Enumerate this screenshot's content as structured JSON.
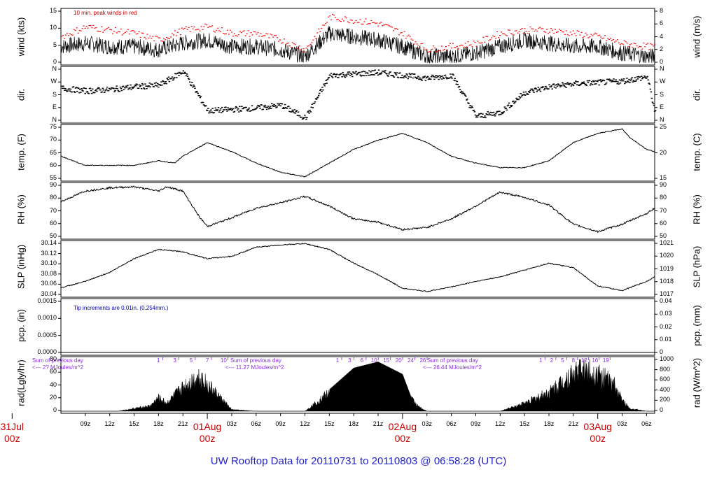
{
  "title": "UW Rooftop Data for 20110731  to  20110803 @ 06:58:28  (UTC)",
  "colors": {
    "trace": "#000000",
    "peak": "#ff0000",
    "day_label": "#cc0000",
    "title": "#2222cc",
    "note_blue": "#0000aa",
    "note_purple": "#8a2be2"
  },
  "x_axis": {
    "start_hour": 6,
    "end_hour": 79,
    "hour_ticks": [
      {
        "h": 9,
        "label": "09z"
      },
      {
        "h": 12,
        "label": "12z"
      },
      {
        "h": 15,
        "label": "15z"
      },
      {
        "h": 18,
        "label": "18z"
      },
      {
        "h": 21,
        "label": "21z"
      },
      {
        "h": 27,
        "label": "03z"
      },
      {
        "h": 30,
        "label": "06z"
      },
      {
        "h": 33,
        "label": "09z"
      },
      {
        "h": 36,
        "label": "12z"
      },
      {
        "h": 39,
        "label": "15z"
      },
      {
        "h": 42,
        "label": "18z"
      },
      {
        "h": 45,
        "label": "21z"
      },
      {
        "h": 51,
        "label": "03z"
      },
      {
        "h": 54,
        "label": "06z"
      },
      {
        "h": 57,
        "label": "09z"
      },
      {
        "h": 60,
        "label": "12z"
      },
      {
        "h": 63,
        "label": "15z"
      },
      {
        "h": 66,
        "label": "18z"
      },
      {
        "h": 69,
        "label": "21z"
      },
      {
        "h": 75,
        "label": "03z"
      },
      {
        "h": 78,
        "label": "06z"
      }
    ],
    "day_labels": [
      {
        "h": 0,
        "line1": "31Jul",
        "line2": "00z"
      },
      {
        "h": 24,
        "line1": "01Aug",
        "line2": "00z"
      },
      {
        "h": 48,
        "line1": "02Aug",
        "line2": "00z"
      },
      {
        "h": 72,
        "line1": "03Aug",
        "line2": "00z"
      }
    ]
  },
  "panels": {
    "wind": {
      "left_label": "wind (kts)",
      "right_label": "wind (m/s)",
      "left_ticks": [
        "15",
        "10",
        "5",
        "0"
      ],
      "right_ticks": [
        "8",
        "6",
        "4",
        "2",
        "0"
      ],
      "note": "10 min. peak winds in red"
    },
    "dir": {
      "left_label": "dir.",
      "right_label": "dir.",
      "left_ticks": [
        "N",
        "W",
        "S",
        "E",
        "N"
      ],
      "right_ticks": [
        "N",
        "W",
        "S",
        "E",
        "N"
      ]
    },
    "temp": {
      "left_label": "temp. (F)",
      "right_label": "temp. (C)",
      "left_ticks": [
        "75",
        "70",
        "65",
        "60",
        "55"
      ],
      "right_ticks": [
        "25",
        "20",
        "15"
      ]
    },
    "rh": {
      "left_label": "RH (%)",
      "right_label": "RH (%)",
      "left_ticks": [
        "90",
        "80",
        "70",
        "60",
        "50"
      ],
      "right_ticks": [
        "90",
        "80",
        "70",
        "60",
        "50"
      ]
    },
    "slp": {
      "left_label": "SLP (inHg)",
      "right_label": "SLP (hPa)",
      "left_ticks": [
        "30.14",
        "30.12",
        "30.10",
        "30.08",
        "30.06",
        "30.04"
      ],
      "right_ticks": [
        "1021",
        "1020",
        "1019",
        "1018",
        "1017"
      ]
    },
    "pcp": {
      "left_label": "pcp. (in)",
      "right_label": "pcp. (mm)",
      "left_ticks": [
        "0.0015",
        "0.0010",
        "0.0005",
        "0.0000"
      ],
      "right_ticks": [
        "0.04",
        "0.03",
        "0.02",
        "0.01",
        "0"
      ],
      "note": "Tip increments are 0.01in. (0.254mm.)"
    },
    "rad": {
      "left_label": "rad(Lgly/hr)",
      "right_label": "rad (W/m^2)",
      "left_ticks": [
        "80",
        "60",
        "40",
        "20",
        "0"
      ],
      "right_ticks": [
        "1000",
        "800",
        "600",
        "400",
        "200",
        "0"
      ],
      "sums": [
        {
          "line1": "Sum of previous day",
          "line2": "<--- 2? MJoules/m^2"
        },
        {
          "line1": "Sum of previous day",
          "line2": "<--- 11.27 MJoules/m^2"
        },
        {
          "line1": "Sum of previous day",
          "line2": "<--- 26.44 MJoules/m^2"
        }
      ],
      "hour_labels_1": [
        "1",
        "3",
        "5",
        "7",
        "10"
      ],
      "hour_labels_2": [
        "1",
        "3",
        "6",
        "10",
        "15",
        "20",
        "24",
        "26"
      ],
      "hour_labels_3": [
        "1",
        "2",
        "5",
        "8",
        "12",
        "16",
        "19"
      ]
    }
  },
  "chart_data": [
    {
      "type": "line",
      "title": "",
      "xlabel": "",
      "ylabel": "wind (kts)",
      "ylim": [
        0,
        16
      ],
      "x": [
        6,
        9,
        12,
        15,
        18,
        21,
        24,
        27,
        30,
        33,
        36,
        39,
        42,
        45,
        48,
        51,
        54,
        57,
        60,
        63,
        66,
        69,
        72,
        75,
        78,
        79
      ],
      "series": [
        {
          "values": [
            5,
            6,
            5,
            5,
            4,
            6,
            7,
            5,
            5,
            4,
            2,
            9,
            8,
            7,
            5,
            2,
            2,
            3,
            5,
            7,
            6,
            5,
            5,
            3,
            2,
            2
          ]
        },
        {
          "name": "10 min. peak winds in red",
          "values": [
            8,
            11,
            10,
            9,
            7,
            10,
            11,
            9,
            9,
            7,
            4,
            14,
            13,
            12,
            9,
            4,
            5,
            6,
            9,
            10,
            10,
            9,
            8,
            6,
            5,
            5
          ]
        }
      ]
    },
    {
      "type": "scatter",
      "title": "",
      "ylabel": "dir.",
      "x": [
        6,
        9,
        12,
        15,
        18,
        21,
        24,
        27,
        30,
        33,
        36,
        39,
        42,
        45,
        48,
        51,
        54,
        57,
        60,
        63,
        66,
        69,
        72,
        75,
        78,
        79
      ],
      "series": [
        {
          "values": [
            230,
            210,
            220,
            240,
            250,
            350,
            70,
            80,
            90,
            110,
            20,
            320,
            330,
            340,
            320,
            300,
            320,
            30,
            60,
            200,
            240,
            260,
            270,
            280,
            310,
            50
          ]
        }
      ]
    },
    {
      "type": "line",
      "title": "",
      "ylabel": "temp. (F)",
      "ylim": [
        54,
        77
      ],
      "x": [
        6,
        9,
        12,
        15,
        18,
        20,
        21,
        24,
        27,
        30,
        33,
        36,
        39,
        42,
        45,
        48,
        51,
        54,
        57,
        60,
        63,
        66,
        69,
        72,
        75,
        76,
        78,
        79
      ],
      "series": [
        {
          "values": [
            64,
            60,
            60,
            60,
            62,
            61,
            64,
            70,
            66,
            61,
            57,
            55,
            61,
            67,
            71,
            74,
            70,
            64,
            61,
            59,
            59,
            62,
            70,
            74,
            76,
            72,
            67,
            66
          ]
        }
      ]
    },
    {
      "type": "line",
      "title": "",
      "ylabel": "RH (%)",
      "ylim": [
        43,
        92
      ],
      "x": [
        6,
        9,
        12,
        15,
        18,
        19,
        21,
        23,
        24,
        27,
        30,
        33,
        36,
        39,
        42,
        45,
        48,
        51,
        54,
        57,
        60,
        63,
        66,
        69,
        72,
        75,
        78,
        79
      ],
      "series": [
        {
          "values": [
            76,
            86,
            89,
            90,
            86,
            90,
            86,
            62,
            53,
            61,
            70,
            75,
            81,
            72,
            60,
            57,
            50,
            52,
            60,
            72,
            85,
            80,
            73,
            55,
            48,
            55,
            65,
            70
          ]
        }
      ]
    },
    {
      "type": "line",
      "title": "",
      "ylabel": "SLP (inHg)",
      "ylim": [
        30.03,
        30.145
      ],
      "x": [
        6,
        9,
        12,
        15,
        18,
        21,
        24,
        27,
        30,
        33,
        36,
        39,
        42,
        45,
        48,
        51,
        54,
        57,
        60,
        63,
        66,
        69,
        72,
        75,
        78,
        79
      ],
      "series": [
        {
          "values": [
            30.046,
            30.06,
            30.08,
            30.11,
            30.13,
            30.125,
            30.11,
            30.115,
            30.135,
            30.14,
            30.143,
            30.13,
            30.1,
            30.075,
            30.045,
            30.038,
            30.048,
            30.06,
            30.07,
            30.085,
            30.1,
            30.09,
            30.05,
            30.04,
            30.06,
            30.07
          ]
        }
      ]
    },
    {
      "type": "line",
      "title": "",
      "ylabel": "pcp. (in)",
      "ylim": [
        0,
        0.0017
      ],
      "x": [
        6,
        79
      ],
      "series": [
        {
          "values": [
            0,
            0
          ]
        }
      ]
    },
    {
      "type": "area",
      "title": "",
      "ylabel": "rad(Lgly/hr)",
      "ylim": [
        0,
        85
      ],
      "x": [
        6,
        9,
        12,
        13,
        15,
        17,
        18,
        19,
        21,
        23,
        24,
        27,
        30,
        33,
        36,
        39,
        42,
        45,
        48,
        49,
        50,
        51,
        54,
        57,
        60,
        63,
        66,
        68,
        70,
        72,
        74,
        75,
        76,
        78,
        79
      ],
      "series": [
        {
          "values": [
            0,
            0,
            0,
            0,
            5,
            10,
            25,
            15,
            45,
            65,
            50,
            3,
            0,
            0,
            0,
            35,
            70,
            80,
            60,
            25,
            8,
            0,
            0,
            0,
            0,
            15,
            35,
            60,
            80,
            70,
            50,
            20,
            5,
            0,
            0
          ]
        }
      ]
    }
  ]
}
